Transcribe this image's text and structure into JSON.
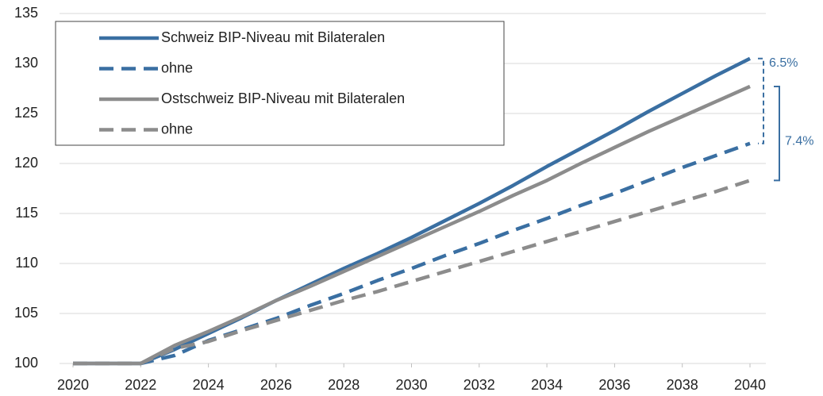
{
  "chart_data": {
    "type": "line",
    "x": [
      2020,
      2021,
      2022,
      2023,
      2024,
      2025,
      2026,
      2027,
      2028,
      2029,
      2030,
      2031,
      2032,
      2033,
      2034,
      2035,
      2036,
      2037,
      2038,
      2039,
      2040
    ],
    "series": [
      {
        "name": "Schweiz BIP-Niveau mit Bilateralen",
        "color": "#3a6fa2",
        "dash": false,
        "values": [
          100,
          100,
          100,
          101.4,
          103,
          104.6,
          106.3,
          107.9,
          109.5,
          111,
          112.6,
          114.3,
          116,
          117.8,
          119.7,
          121.5,
          123.3,
          125.2,
          127,
          128.8,
          130.5
        ]
      },
      {
        "name": "ohne",
        "color": "#3a6fa2",
        "dash": true,
        "values": [
          100,
          100,
          100,
          100.8,
          102.3,
          103.4,
          104.5,
          105.8,
          107,
          108.3,
          109.5,
          110.8,
          112,
          113.3,
          114.5,
          115.8,
          117,
          118.3,
          119.6,
          120.8,
          122
        ]
      },
      {
        "name": "Ostschweiz BIP-Niveau mit Bilateralen",
        "color": "#8c8c8c",
        "dash": false,
        "values": [
          100,
          100,
          100,
          101.8,
          103.2,
          104.7,
          106.3,
          107.7,
          109.2,
          110.7,
          112.2,
          113.7,
          115.2,
          116.8,
          118.3,
          120,
          121.6,
          123.2,
          124.7,
          126.2,
          127.7
        ]
      },
      {
        "name": "ohne",
        "color": "#8c8c8c",
        "dash": true,
        "values": [
          100,
          100,
          100,
          101.5,
          102.2,
          103.3,
          104.3,
          105.3,
          106.3,
          107.2,
          108.2,
          109.2,
          110.2,
          111.2,
          112.2,
          113.2,
          114.2,
          115.2,
          116.2,
          117.2,
          118.3
        ]
      }
    ],
    "annotations": [
      {
        "text": "6.5%",
        "from": 0,
        "to": 1
      },
      {
        "text": "7.4%",
        "from": 2,
        "to": 3
      }
    ],
    "annotation_color": "#3a6fa2",
    "xlim": [
      2020,
      2040
    ],
    "xticks": [
      2020,
      2022,
      2024,
      2026,
      2028,
      2030,
      2032,
      2034,
      2036,
      2038,
      2040
    ],
    "ylim": [
      100,
      135
    ],
    "yticks": [
      100,
      105,
      110,
      115,
      120,
      125,
      130,
      135
    ],
    "grid": true,
    "legend": "upper left"
  }
}
